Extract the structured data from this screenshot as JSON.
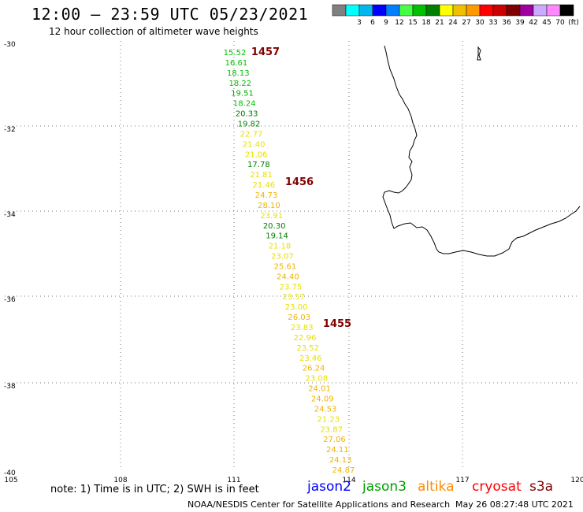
{
  "header": {
    "title": "12:00  –  23:59  UTC  05/23/2021",
    "subtitle": "12 hour collection of altimeter wave heights"
  },
  "colorbar": {
    "bins": [
      {
        "color": "#808080",
        "label": ""
      },
      {
        "color": "#00ffff",
        "label": "3"
      },
      {
        "color": "#00b7ee",
        "label": "6"
      },
      {
        "color": "#0000ff",
        "label": "9"
      },
      {
        "color": "#0080ff",
        "label": "12"
      },
      {
        "color": "#44ff44",
        "label": "15"
      },
      {
        "color": "#00c000",
        "label": "18"
      },
      {
        "color": "#008000",
        "label": "21"
      },
      {
        "color": "#ffff00",
        "label": "24"
      },
      {
        "color": "#f0c000",
        "label": "27"
      },
      {
        "color": "#ff9900",
        "label": "30"
      },
      {
        "color": "#ff0000",
        "label": "33"
      },
      {
        "color": "#cc0000",
        "label": "36"
      },
      {
        "color": "#800000",
        "label": "39"
      },
      {
        "color": "#a000a0",
        "label": "42"
      },
      {
        "color": "#ccaaff",
        "label": "45"
      },
      {
        "color": "#ff88ff",
        "label": "70"
      },
      {
        "color": "#000000",
        "label": "(ft)"
      }
    ]
  },
  "map": {
    "lat_labels": [
      "-30",
      "-32",
      "-34",
      "-36",
      "-38",
      "-40"
    ],
    "lon_labels": [
      "105",
      "108",
      "111",
      "114",
      "117",
      "120"
    ],
    "lat_range": [
      -30,
      -40
    ],
    "lon_range": [
      105,
      120
    ],
    "grid": "dotted"
  },
  "pass_labels": [
    {
      "text": "1457",
      "color": "#800000"
    },
    {
      "text": "1456",
      "color": "#800000"
    },
    {
      "text": "1455",
      "color": "#800000"
    }
  ],
  "observations": [
    {
      "value": "15.52",
      "color": "#00c000"
    },
    {
      "value": "16.61",
      "color": "#00c000"
    },
    {
      "value": "18.13",
      "color": "#00c000"
    },
    {
      "value": "18.22",
      "color": "#00c000"
    },
    {
      "value": "19.51",
      "color": "#00b000"
    },
    {
      "value": "18.24",
      "color": "#00c000"
    },
    {
      "value": "20.33",
      "color": "#008000"
    },
    {
      "value": "19.82",
      "color": "#008000"
    },
    {
      "value": "22.77",
      "color": "#e8e000"
    },
    {
      "value": "21.40",
      "color": "#e8e000"
    },
    {
      "value": "21.06",
      "color": "#e8e000"
    },
    {
      "value": "17.78",
      "color": "#008000"
    },
    {
      "value": "21.81",
      "color": "#e8e000"
    },
    {
      "value": "21.46",
      "color": "#e8e000"
    },
    {
      "value": "24.73",
      "color": "#f0b400"
    },
    {
      "value": "28.10",
      "color": "#f0b400"
    },
    {
      "value": "23.91",
      "color": "#e8e000"
    },
    {
      "value": "20.30",
      "color": "#008000"
    },
    {
      "value": "19.14",
      "color": "#008000"
    },
    {
      "value": "21.18",
      "color": "#e8e000"
    },
    {
      "value": "23.07",
      "color": "#e8e000"
    },
    {
      "value": "25.61",
      "color": "#f0b400"
    },
    {
      "value": "24.40",
      "color": "#f0b400"
    },
    {
      "value": "23.75",
      "color": "#e8e000"
    },
    {
      "value": "23.57",
      "color": "#e8e000"
    },
    {
      "value": "23.00",
      "color": "#e8e000"
    },
    {
      "value": "26.03",
      "color": "#f0b400"
    },
    {
      "value": "23.83",
      "color": "#e8e000"
    },
    {
      "value": "22.96",
      "color": "#e8e000"
    },
    {
      "value": "23.52",
      "color": "#e8e000"
    },
    {
      "value": "23.46",
      "color": "#e8e000"
    },
    {
      "value": "26.24",
      "color": "#f0b400"
    },
    {
      "value": "23.08",
      "color": "#e8e000"
    },
    {
      "value": "24.01",
      "color": "#f0b400"
    },
    {
      "value": "24.09",
      "color": "#f0b400"
    },
    {
      "value": "24.53",
      "color": "#f0b400"
    },
    {
      "value": "21.23",
      "color": "#e8e000"
    },
    {
      "value": "23.87",
      "color": "#e8e000"
    },
    {
      "value": "27.06",
      "color": "#f0b400"
    },
    {
      "value": "24.11",
      "color": "#f0b400"
    },
    {
      "value": "24.13",
      "color": "#f0b400"
    },
    {
      "value": "24.87",
      "color": "#f0b400"
    }
  ],
  "footer": {
    "note": "note:  1) Time is in UTC;  2) SWH is in feet",
    "satellites": [
      {
        "name": "jason2",
        "color": "#0000ff"
      },
      {
        "name": "jason3",
        "color": "#00a000"
      },
      {
        "name": "altika",
        "color": "#ff8c00"
      },
      {
        "name": "cryosat",
        "color": "#ff0000"
      },
      {
        "name": "s3a",
        "color": "#800000"
      }
    ],
    "credit": "NOAA/NESDIS Center for Satellite Applications and Research",
    "timestamp": "May 26 08:27:48 UTC 2021"
  }
}
